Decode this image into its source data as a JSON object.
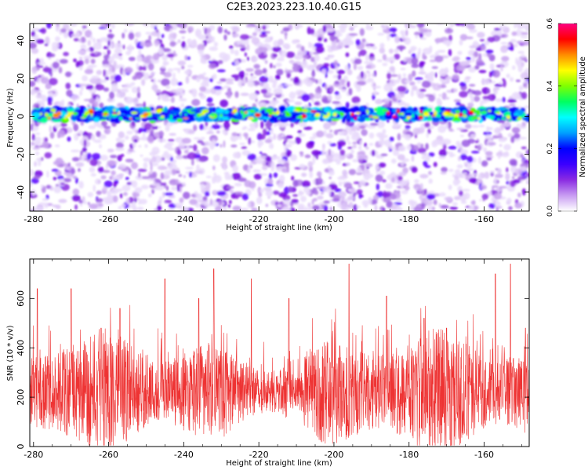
{
  "title": "C2E3.2023.223.10.40.G15",
  "chart_data": [
    {
      "type": "heatmap",
      "xlabel": "Height of straight line (km)",
      "ylabel": "Frequency (Hz)",
      "xlim": [
        -281,
        -148
      ],
      "ylim": [
        -50,
        49
      ],
      "xticks": [
        -280,
        -260,
        -240,
        -220,
        -200,
        -180,
        -160
      ],
      "yticks": [
        -40,
        -20,
        0,
        20,
        40
      ],
      "colorbar": {
        "label": "Normalized spectral amplitude",
        "range": [
          0,
          0.6
        ],
        "ticks": [
          "0.0",
          "0.2",
          "0.4",
          "0.6"
        ],
        "colors": [
          "#ffffff",
          "#c89cf2",
          "#8a2be2",
          "#3a00ff",
          "#0000ff",
          "#00a0ff",
          "#00ffff",
          "#00ff60",
          "#7fff00",
          "#ffff00",
          "#ff8c00",
          "#ff0000",
          "#ff0080"
        ]
      },
      "signal_band": {
        "center_hz": 1,
        "half_width_hz": 3
      }
    },
    {
      "type": "line",
      "xlabel": "Height of straight line (km)",
      "ylabel": "SNR (10 * v/v)",
      "xlim": [
        -281,
        -148
      ],
      "ylim": [
        0,
        760
      ],
      "xticks": [
        -280,
        -260,
        -240,
        -220,
        -200,
        -180,
        -160
      ],
      "yticks": [
        0,
        200,
        400,
        600
      ],
      "color": "#ee3333",
      "baseline_mean": 220,
      "peaks": [
        {
          "x": -279,
          "y": 640
        },
        {
          "x": -270,
          "y": 640
        },
        {
          "x": -262,
          "y": 480
        },
        {
          "x": -257,
          "y": 560
        },
        {
          "x": -245,
          "y": 680
        },
        {
          "x": -236,
          "y": 600
        },
        {
          "x": -232,
          "y": 720
        },
        {
          "x": -222,
          "y": 680
        },
        {
          "x": -212,
          "y": 600
        },
        {
          "x": -196,
          "y": 740
        },
        {
          "x": -186,
          "y": 610
        },
        {
          "x": -176,
          "y": 520
        },
        {
          "x": -170,
          "y": 480
        },
        {
          "x": -157,
          "y": 700
        },
        {
          "x": -153,
          "y": 740
        },
        {
          "x": -149,
          "y": 480
        }
      ]
    }
  ]
}
